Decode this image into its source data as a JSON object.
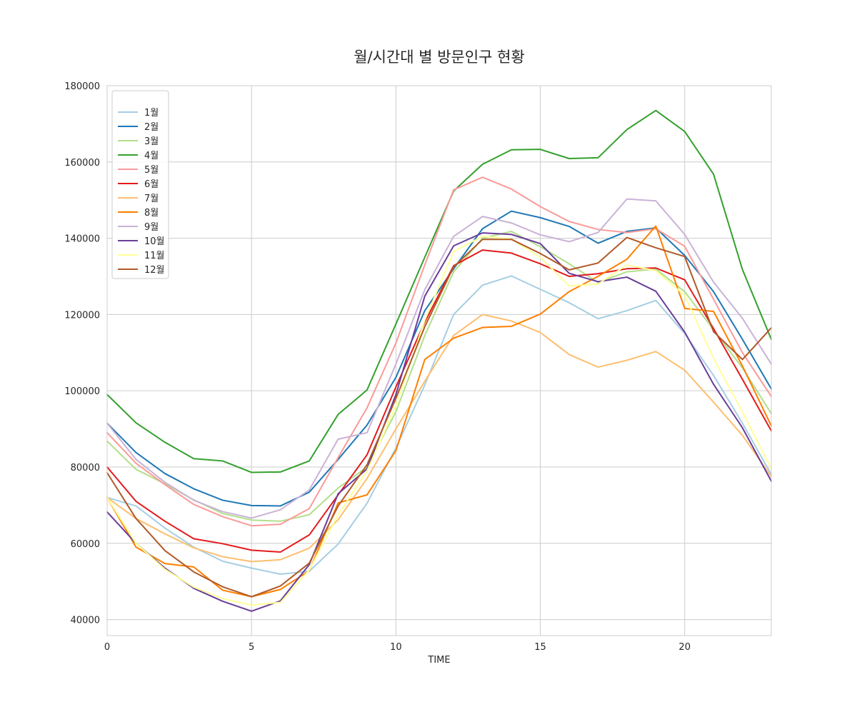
{
  "chart_data": {
    "type": "line",
    "title": "월/시간대 별 방문인구 현황",
    "xlabel": "TIME",
    "ylabel": "",
    "xlim": [
      0,
      23
    ],
    "ylim": [
      35800,
      180000
    ],
    "xticks": [
      0,
      5,
      10,
      15,
      20
    ],
    "yticks": [
      40000,
      60000,
      80000,
      100000,
      120000,
      140000,
      160000,
      180000
    ],
    "grid": true,
    "legend_position": "top-left",
    "x": [
      0,
      1,
      2,
      3,
      4,
      5,
      6,
      7,
      8,
      9,
      10,
      11,
      12,
      13,
      14,
      15,
      16,
      17,
      18,
      19,
      20,
      21,
      22,
      23
    ],
    "series": [
      {
        "name": "1월",
        "color": "#a6cee3",
        "values": [
          72000,
          69800,
          64000,
          59000,
          55300,
          53500,
          51900,
          52700,
          59800,
          70500,
          85000,
          101500,
          120000,
          127700,
          130100,
          126600,
          123100,
          118900,
          121000,
          123700,
          115000,
          104000,
          91500,
          78000
        ]
      },
      {
        "name": "2월",
        "color": "#1f78b4",
        "values": [
          91500,
          83800,
          78300,
          74300,
          71300,
          69900,
          69800,
          73400,
          82000,
          91000,
          103500,
          121000,
          132000,
          142500,
          147100,
          145400,
          143100,
          138700,
          141800,
          142700,
          135500,
          126000,
          113500,
          100500
        ]
      },
      {
        "name": "3월",
        "color": "#b2df8a",
        "values": [
          86800,
          79400,
          75600,
          71400,
          67800,
          66100,
          65800,
          67500,
          74500,
          80000,
          94500,
          114500,
          131200,
          140000,
          141800,
          137800,
          133300,
          128400,
          131200,
          131900,
          126000,
          116000,
          106000,
          94000
        ]
      },
      {
        "name": "4월",
        "color": "#33a02c",
        "values": [
          99000,
          91600,
          86500,
          82200,
          81600,
          78600,
          78700,
          81600,
          93800,
          100200,
          117500,
          135000,
          152400,
          159400,
          163200,
          163300,
          160900,
          161100,
          168500,
          173500,
          168000,
          156800,
          131800,
          113500
        ]
      },
      {
        "name": "5월",
        "color": "#fb9a99",
        "values": [
          89000,
          81000,
          75400,
          70200,
          67000,
          64600,
          65000,
          69100,
          82500,
          95500,
          112500,
          133000,
          152700,
          156000,
          152900,
          148300,
          144400,
          142300,
          141500,
          142500,
          137900,
          124000,
          110000,
          98500
        ]
      },
      {
        "name": "6월",
        "color": "#e31a1c",
        "values": [
          80000,
          71000,
          65800,
          61200,
          59900,
          58200,
          57700,
          62200,
          72700,
          83200,
          101000,
          118000,
          132800,
          136900,
          136100,
          133300,
          130000,
          130700,
          132000,
          132200,
          129100,
          116300,
          103000,
          89500
        ]
      },
      {
        "name": "7월",
        "color": "#fdbf6f",
        "values": [
          72000,
          66500,
          62500,
          58800,
          56500,
          55200,
          55700,
          58700,
          66200,
          77000,
          90000,
          102500,
          114500,
          120000,
          118300,
          115300,
          109500,
          106200,
          108000,
          110300,
          105400,
          97000,
          88300,
          77500
        ]
      },
      {
        "name": "8월",
        "color": "#ff7f00",
        "values": [
          72000,
          59000,
          54700,
          53800,
          47700,
          46000,
          47900,
          52800,
          70600,
          72700,
          84300,
          108200,
          113800,
          116600,
          116900,
          120100,
          126000,
          130000,
          134500,
          143200,
          121600,
          120800,
          106500,
          90800
        ]
      },
      {
        "name": "9월",
        "color": "#cab2d6",
        "values": [
          91500,
          82000,
          76000,
          71300,
          68300,
          66600,
          68800,
          74000,
          87300,
          89000,
          107000,
          126500,
          140500,
          145700,
          144000,
          140900,
          139100,
          141500,
          150300,
          149800,
          141000,
          128500,
          119000,
          107000
        ]
      },
      {
        "name": "10월",
        "color": "#6a3d9a",
        "values": [
          68200,
          60000,
          53500,
          48200,
          44800,
          42200,
          44900,
          54400,
          73000,
          79500,
          99000,
          124800,
          138000,
          141400,
          141000,
          138600,
          130800,
          128600,
          129800,
          126100,
          115400,
          101700,
          90300,
          76300
        ]
      },
      {
        "name": "11월",
        "color": "#ffff99",
        "values": [
          72000,
          60000,
          53200,
          48500,
          45500,
          43800,
          44500,
          53000,
          67500,
          79000,
          96000,
          118500,
          136500,
          140500,
          139800,
          135000,
          127500,
          128000,
          133000,
          131500,
          125000,
          108500,
          94500,
          79500
        ]
      },
      {
        "name": "12월",
        "color": "#b15928",
        "values": [
          78500,
          66500,
          58100,
          52500,
          48600,
          46000,
          48800,
          54800,
          69800,
          80600,
          98000,
          116800,
          132500,
          139700,
          139700,
          136000,
          131700,
          133500,
          140200,
          137500,
          135200,
          115500,
          108200,
          116500
        ]
      }
    ]
  }
}
